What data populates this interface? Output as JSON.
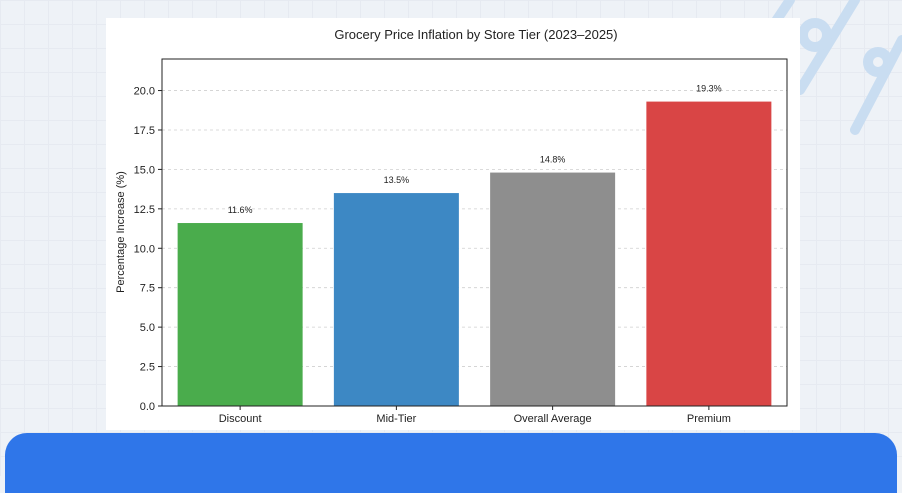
{
  "chart_data": {
    "type": "bar",
    "title": "Grocery Price Inflation by Store Tier (2023–2025)",
    "xlabel": "",
    "ylabel": "Percentage Increase (%)",
    "categories": [
      "Discount",
      "Mid-Tier",
      "Overall Average",
      "Premium"
    ],
    "values": [
      11.6,
      13.5,
      14.8,
      19.3
    ],
    "data_labels": [
      "11.6%",
      "13.5%",
      "14.8%",
      "19.3%"
    ],
    "colors": [
      "#4aac4c",
      "#3d88c4",
      "#8e8e8e",
      "#d94545"
    ],
    "ylim": [
      0,
      22
    ],
    "yticks": [
      0.0,
      2.5,
      5.0,
      7.5,
      10.0,
      12.5,
      15.0,
      17.5,
      20.0
    ],
    "ytick_labels": [
      "0.0",
      "2.5",
      "5.0",
      "7.5",
      "10.0",
      "12.5",
      "15.0",
      "17.5",
      "20.0"
    ],
    "grid": "horizontal dashed",
    "legend": "none"
  },
  "theme": {
    "background": "#eef2f7",
    "panel": "#ffffff",
    "banner": "#2f76e9",
    "decoration": "#c8dcf0"
  }
}
